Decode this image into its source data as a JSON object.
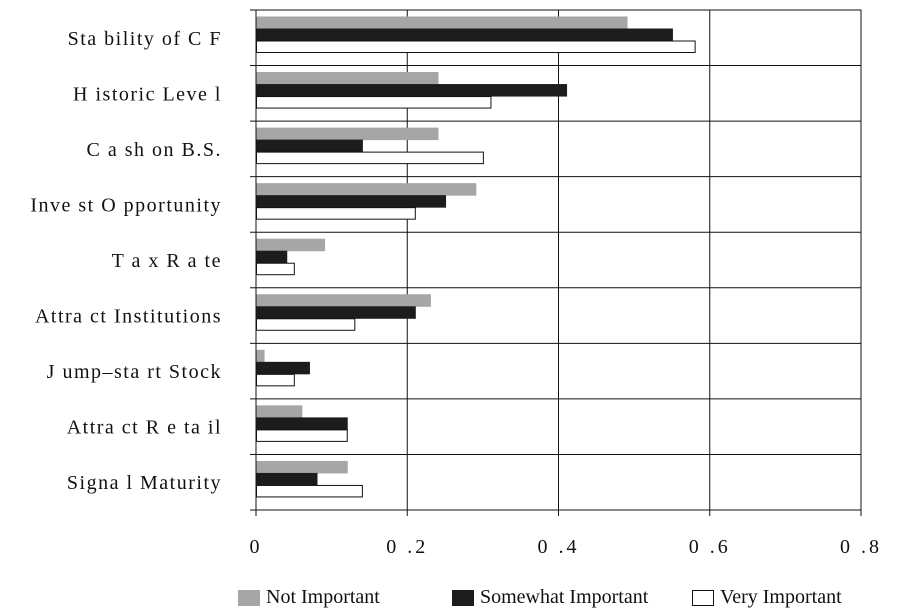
{
  "chart_data": {
    "type": "bar",
    "orientation": "horizontal",
    "title": "",
    "xlabel": "",
    "ylabel": "",
    "categories": [
      "Stability of CF",
      "Historic Level",
      "Cash on B.S.",
      "Invest Opportunity",
      "Tax Rate",
      "Attract Institutions",
      "Jump–start Stock",
      "Attract Retail",
      "Signal Maturity"
    ],
    "category_labels": [
      "Sta bility of C F",
      "H istoric Leve l",
      "C a sh on B.S.",
      "Inve st O pportunity",
      "T a x R a te",
      "Attra ct Institutions",
      "J ump–sta rt Stock",
      "Attra ct R e ta il",
      "Signa l Maturity"
    ],
    "series": [
      {
        "name": "Not Important",
        "color": "#a6a6a6",
        "stroke": "#a6a6a6",
        "values": [
          0.49,
          0.24,
          0.24,
          0.29,
          0.09,
          0.23,
          0.01,
          0.06,
          0.12
        ]
      },
      {
        "name": "Somewhat Important",
        "color": "#1c1c1c",
        "stroke": "#1c1c1c",
        "values": [
          0.55,
          0.41,
          0.14,
          0.25,
          0.04,
          0.21,
          0.07,
          0.12,
          0.08
        ]
      },
      {
        "name": "Very Important",
        "color": "#ffffff",
        "stroke": "#111111",
        "values": [
          0.58,
          0.31,
          0.3,
          0.21,
          0.05,
          0.13,
          0.05,
          0.12,
          0.14
        ]
      }
    ],
    "xlim": [
      0,
      0.8
    ],
    "xticks": [
      0,
      0.2,
      0.4,
      0.6,
      0.8
    ],
    "xtick_labels": [
      "0",
      "0 .2",
      "0 .4",
      "0 .6",
      "0 .8"
    ],
    "grid": true,
    "legend_position": "bottom"
  }
}
